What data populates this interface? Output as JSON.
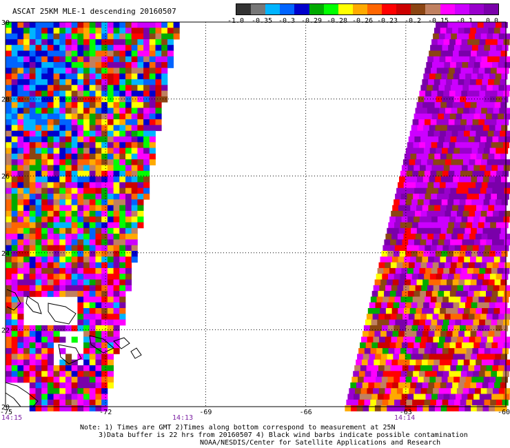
{
  "header": {
    "title": "ASCAT 25KM MLE-1 descending",
    "date": "20160507"
  },
  "color_scale": {
    "labels": [
      "-1.0",
      "-0.35",
      "-0.3",
      "-0.29",
      "-0.28",
      "-0.26",
      "-0.23",
      "-0.2",
      "-0.15",
      "-0.1",
      "0.0"
    ],
    "colors": [
      "#333333",
      "#777777",
      "#00b4ff",
      "#0064ff",
      "#0000cc",
      "#00aa00",
      "#00ff00",
      "#ffff00",
      "#ffaa00",
      "#ff6600",
      "#ff0000",
      "#cc0000",
      "#8b4513",
      "#c08060",
      "#ff00ff",
      "#cc00ff",
      "#9900cc",
      "#7a00aa"
    ]
  },
  "map": {
    "latitude_labels": [
      "30",
      "28",
      "26",
      "24",
      "22",
      "20"
    ],
    "longitude_labels": [
      "-75",
      "-72",
      "-69",
      "-66",
      "-63",
      "-60"
    ],
    "time_labels": [
      "14:15",
      "14:13",
      "14:14"
    ]
  },
  "notes": {
    "line1": "Note: 1) Times are GMT 2)Times along bottom correspond to measurement at 25N",
    "line2": "3)Data buffer is 22 hrs from 20160507 4) Black wind barbs indicate possible contamination",
    "line3": "NOAA/NESDIS/Center for Satellite Applications and Research"
  }
}
